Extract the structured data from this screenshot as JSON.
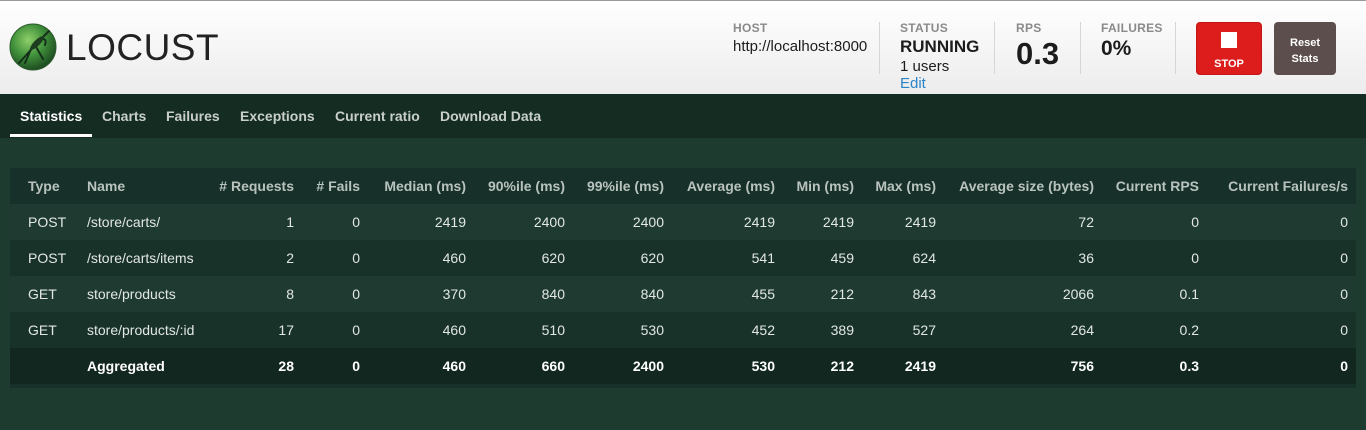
{
  "app": {
    "logo_text": "LOCUST"
  },
  "header": {
    "host_label": "HOST",
    "host_value": "http://localhost:8000",
    "status_label": "STATUS",
    "status_value": "RUNNING",
    "users_value": "1 users",
    "edit_label": "Edit",
    "rps_label": "RPS",
    "rps_value": "0.3",
    "failures_label": "FAILURES",
    "failures_value": "0%",
    "stop_label": "STOP",
    "reset_label_1": "Reset",
    "reset_label_2": "Stats"
  },
  "tabs": [
    {
      "label": "Statistics",
      "active": true
    },
    {
      "label": "Charts"
    },
    {
      "label": "Failures"
    },
    {
      "label": "Exceptions"
    },
    {
      "label": "Current ratio"
    },
    {
      "label": "Download Data"
    }
  ],
  "table": {
    "columns": [
      "Type",
      "Name",
      "# Requests",
      "# Fails",
      "Median (ms)",
      "90%ile (ms)",
      "99%ile (ms)",
      "Average (ms)",
      "Min (ms)",
      "Max (ms)",
      "Average size (bytes)",
      "Current RPS",
      "Current Failures/s"
    ],
    "rows": [
      [
        "POST",
        "/store/carts/",
        "1",
        "0",
        "2419",
        "2400",
        "2400",
        "2419",
        "2419",
        "2419",
        "72",
        "0",
        "0"
      ],
      [
        "POST",
        "/store/carts/items",
        "2",
        "0",
        "460",
        "620",
        "620",
        "541",
        "459",
        "624",
        "36",
        "0",
        "0"
      ],
      [
        "GET",
        "store/products",
        "8",
        "0",
        "370",
        "840",
        "840",
        "455",
        "212",
        "843",
        "2066",
        "0.1",
        "0"
      ],
      [
        "GET",
        "store/products/:id",
        "17",
        "0",
        "460",
        "510",
        "530",
        "452",
        "389",
        "527",
        "264",
        "0.2",
        "0"
      ]
    ],
    "aggregated": [
      "",
      "Aggregated",
      "28",
      "0",
      "460",
      "660",
      "2400",
      "530",
      "212",
      "2419",
      "756",
      "0.3",
      "0"
    ]
  },
  "colors": {
    "background": "#1d3b2f",
    "stop_button": "#dd1c1c",
    "reset_button": "#5c4e4c",
    "edit_link": "#2a84c7"
  },
  "icons": {
    "logo": "locust-grasshopper-logo",
    "stop": "stop-square-icon"
  }
}
